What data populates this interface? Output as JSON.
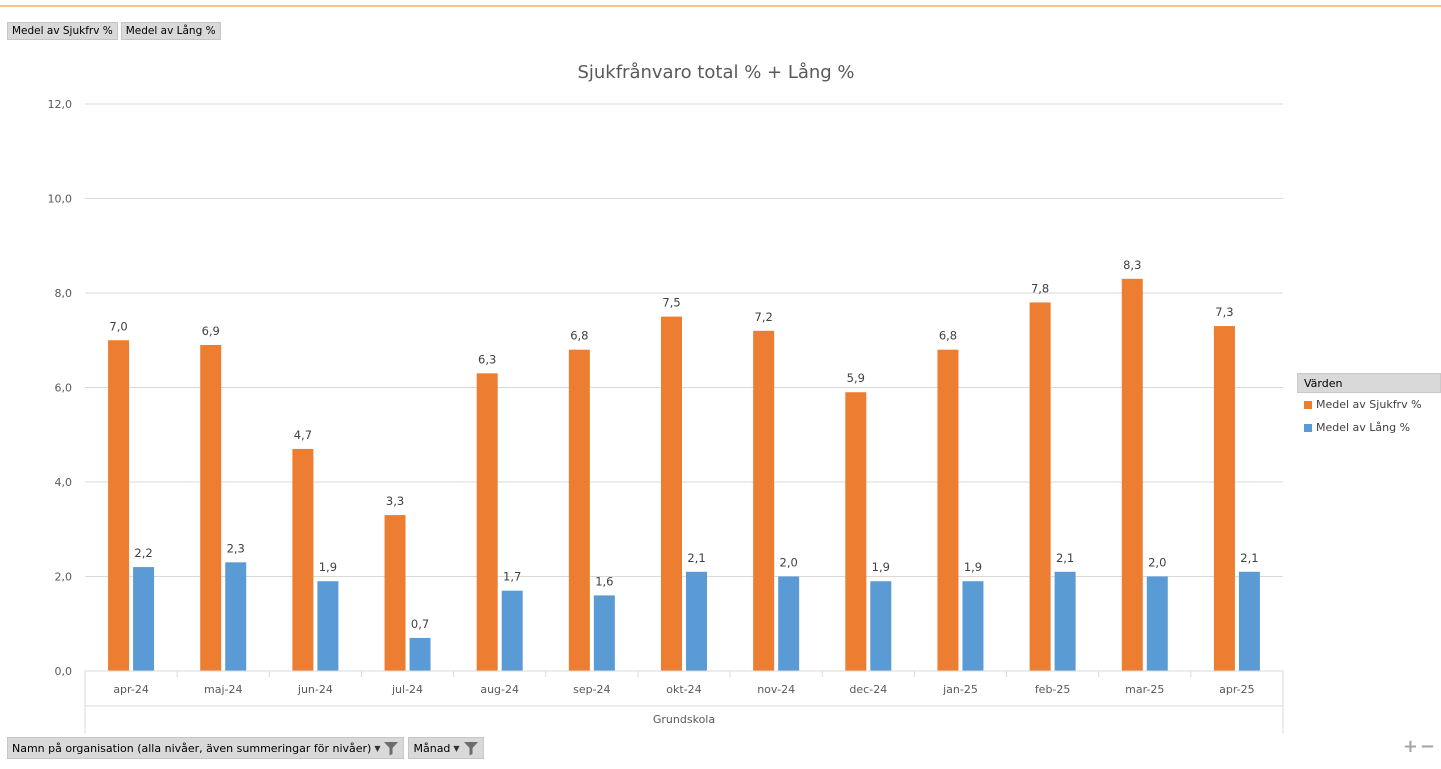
{
  "field_buttons": [
    "Medel av Sjukfrv %",
    "Medel av Lång %"
  ],
  "legend": {
    "title": "Värden",
    "items": [
      {
        "label": "Medel av Sjukfrv %",
        "color": "#ed7d31"
      },
      {
        "label": "Medel av Lång %",
        "color": "#5b9bd5"
      }
    ]
  },
  "bottom_filters": [
    {
      "label": "Namn på organisation (alla nivåer, även summeringar för nivåer)",
      "icon": "funnel-icon"
    },
    {
      "label": "Månad",
      "icon": "funnel-icon"
    }
  ],
  "zoom": {
    "plus": "+",
    "minus": "−"
  },
  "chart_data": {
    "type": "bar",
    "title": "Sjukfrånvaro total % + Lång %",
    "xlabel": "Grundskola",
    "ylabel": "",
    "ylim": [
      0,
      12
    ],
    "yticks": [
      "0,0",
      "2,0",
      "4,0",
      "6,0",
      "8,0",
      "10,0",
      "12,0"
    ],
    "grid": true,
    "legend_position": "right",
    "categories": [
      "apr-24",
      "maj-24",
      "jun-24",
      "jul-24",
      "aug-24",
      "sep-24",
      "okt-24",
      "nov-24",
      "dec-24",
      "jan-25",
      "feb-25",
      "mar-25",
      "apr-25"
    ],
    "series": [
      {
        "name": "Medel av Sjukfrv %",
        "color": "#ed7d31",
        "values": [
          7.0,
          6.9,
          4.7,
          3.3,
          6.3,
          6.8,
          7.5,
          7.2,
          5.9,
          6.8,
          7.8,
          8.3,
          7.3
        ],
        "labels": [
          "7,0",
          "6,9",
          "4,7",
          "3,3",
          "6,3",
          "6,8",
          "7,5",
          "7,2",
          "5,9",
          "6,8",
          "7,8",
          "8,3",
          "7,3"
        ]
      },
      {
        "name": "Medel av Lång %",
        "color": "#5b9bd5",
        "values": [
          2.2,
          2.3,
          1.9,
          0.7,
          1.7,
          1.6,
          2.1,
          2.0,
          1.9,
          1.9,
          2.1,
          2.0,
          2.1
        ],
        "labels": [
          "2,2",
          "2,3",
          "1,9",
          "0,7",
          "1,7",
          "1,6",
          "2,1",
          "2,0",
          "1,9",
          "1,9",
          "2,1",
          "2,0",
          "2,1"
        ]
      }
    ]
  }
}
